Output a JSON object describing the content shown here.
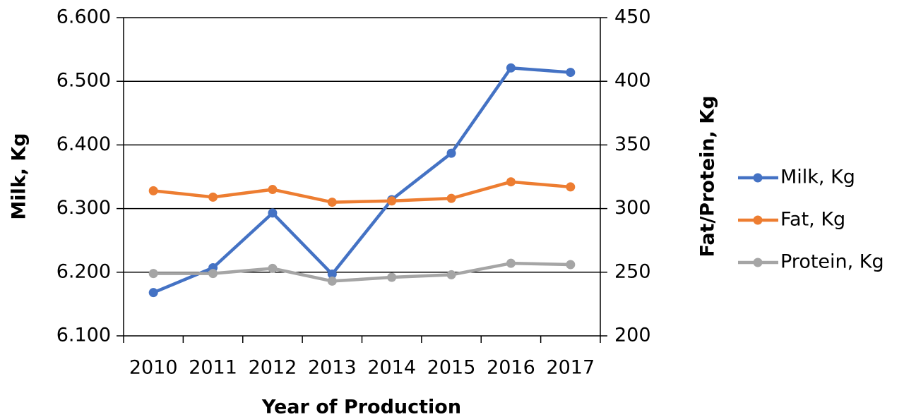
{
  "chart_data": {
    "type": "line",
    "x_label": "Year of Production",
    "y_label": "Milk, Kg",
    "y2_label": "Fat/Protein, Kg",
    "categories": [
      "2010",
      "2011",
      "2012",
      "2013",
      "2014",
      "2015",
      "2016",
      "2017"
    ],
    "series": [
      {
        "name": "Milk, Kg",
        "color": "#4472c4",
        "values": [
          6168,
          6207,
          6293,
          6197,
          6314,
          6387,
          6521,
          6514
        ]
      },
      {
        "name": "Fat, Kg",
        "color": "#ed7d31",
        "axis": "y2",
        "values": [
          314,
          309,
          315,
          305,
          306,
          308,
          321,
          317
        ]
      },
      {
        "name": "Protein, Kg",
        "color": "#a5a5a5",
        "axis": "y2",
        "values": [
          249,
          249,
          253,
          243,
          246,
          248,
          257,
          256
        ]
      }
    ],
    "ylim": [
      6100,
      6600
    ],
    "yticks": [
      {
        "value": 6100,
        "label": "6.100"
      },
      {
        "value": 6200,
        "label": "6.200"
      },
      {
        "value": 6300,
        "label": "6.300"
      },
      {
        "value": 6400,
        "label": "6.400"
      },
      {
        "value": 6500,
        "label": "6.500"
      },
      {
        "value": 6600,
        "label": "6.600"
      }
    ],
    "y2lim": [
      200,
      450
    ],
    "y2ticks": [
      200,
      250,
      300,
      350,
      400,
      450
    ],
    "grid": true,
    "legend": "right"
  }
}
